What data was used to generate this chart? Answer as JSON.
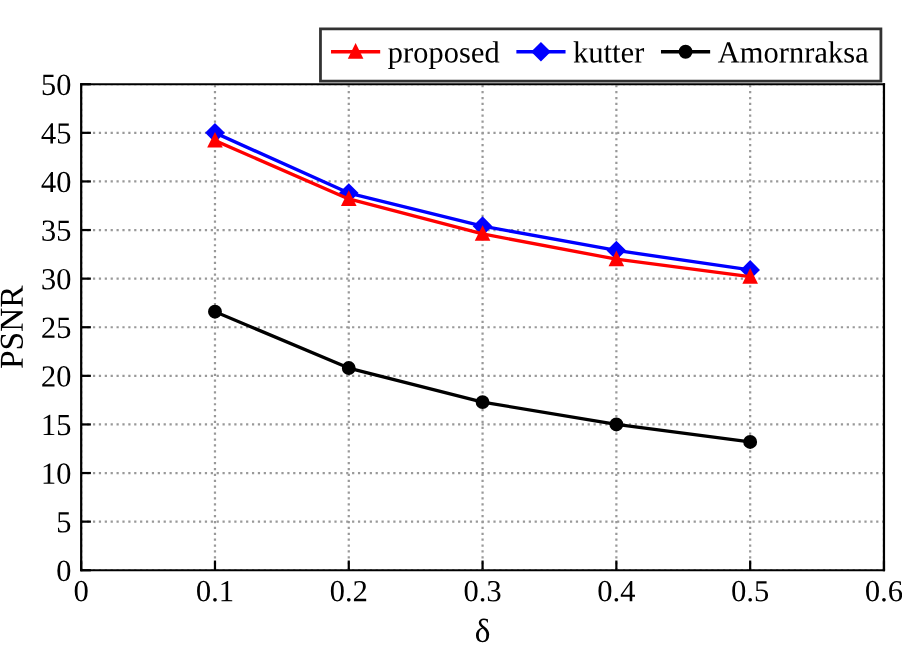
{
  "chart_data": {
    "type": "line",
    "xlabel": "δ",
    "ylabel": "PSNR",
    "x": [
      0.1,
      0.2,
      0.3,
      0.4,
      0.5
    ],
    "series": [
      {
        "name": "proposed",
        "color": "#ff0000",
        "marker": "triangle",
        "values": [
          44.2,
          38.2,
          34.6,
          32.0,
          30.2
        ]
      },
      {
        "name": "kutter",
        "color": "#0000ff",
        "marker": "diamond",
        "values": [
          45.0,
          38.8,
          35.4,
          32.9,
          30.9
        ]
      },
      {
        "name": "Amornraksa",
        "color": "#000000",
        "marker": "circle",
        "values": [
          26.6,
          20.8,
          17.3,
          15.0,
          13.2
        ]
      }
    ],
    "xlim": [
      0,
      0.6
    ],
    "xticks": [
      0,
      0.1,
      0.2,
      0.3,
      0.4,
      0.5,
      0.6
    ],
    "ylim": [
      0,
      50
    ],
    "yticks": [
      0,
      5,
      10,
      15,
      20,
      25,
      30,
      35,
      40,
      45,
      50
    ],
    "grid": true,
    "legend": "top right",
    "line_style": "solid"
  }
}
